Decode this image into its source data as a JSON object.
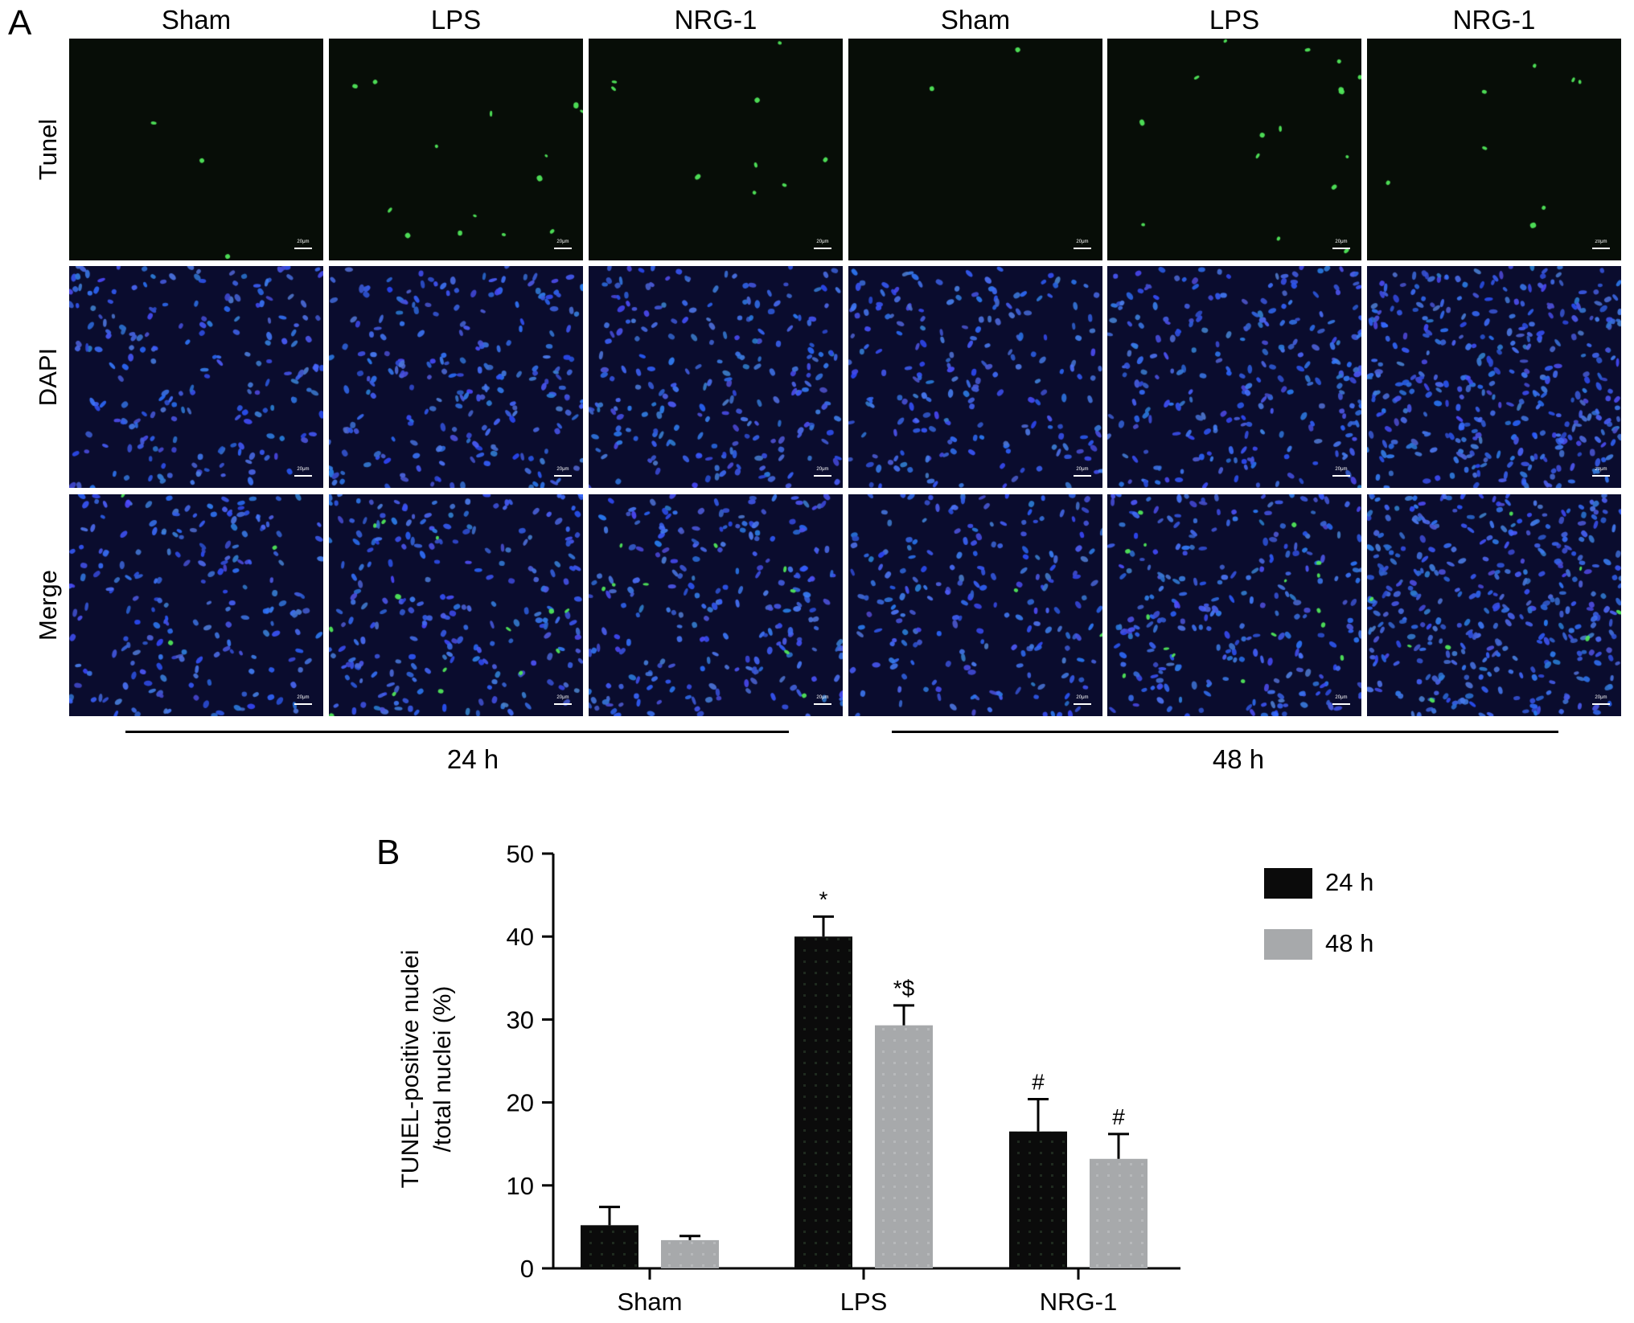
{
  "panel_a": {
    "letter": "A",
    "columns": [
      {
        "label": "Sham",
        "time": "24 h"
      },
      {
        "label": "LPS",
        "time": "24 h"
      },
      {
        "label": "NRG-1",
        "time": "24 h"
      },
      {
        "label": "Sham",
        "time": "48 h"
      },
      {
        "label": "LPS",
        "time": "48 h"
      },
      {
        "label": "NRG-1",
        "time": "48 h"
      }
    ],
    "rows": [
      "Tunel",
      "DAPI",
      "Merge"
    ],
    "scale_bar_label": "20μm",
    "time_groups": [
      "24 h",
      "48 h"
    ]
  },
  "panel_b": {
    "letter": "B"
  },
  "chart_data": {
    "type": "bar",
    "categories": [
      "Sham",
      "LPS",
      "NRG-1"
    ],
    "series": [
      {
        "name": "24 h",
        "values": [
          5.2,
          40.0,
          16.5
        ],
        "errors": [
          2.2,
          2.4,
          3.9
        ],
        "annotations": [
          "",
          "*",
          "#"
        ],
        "color": "#0b0b0b"
      },
      {
        "name": "48 h",
        "values": [
          3.4,
          29.3,
          13.2
        ],
        "errors": [
          0.5,
          2.4,
          3.0
        ],
        "annotations": [
          "",
          "*$",
          "#"
        ],
        "color": "#a7a9ab"
      }
    ],
    "ylabel_line1": "TUNEL-positive nuclei",
    "ylabel_line2": "/total nuclei (%)",
    "xlabel": "",
    "ylim": [
      0,
      50
    ],
    "yticks": [
      0,
      10,
      20,
      30,
      40,
      50
    ],
    "legend_position": "top-right",
    "grid": false
  }
}
